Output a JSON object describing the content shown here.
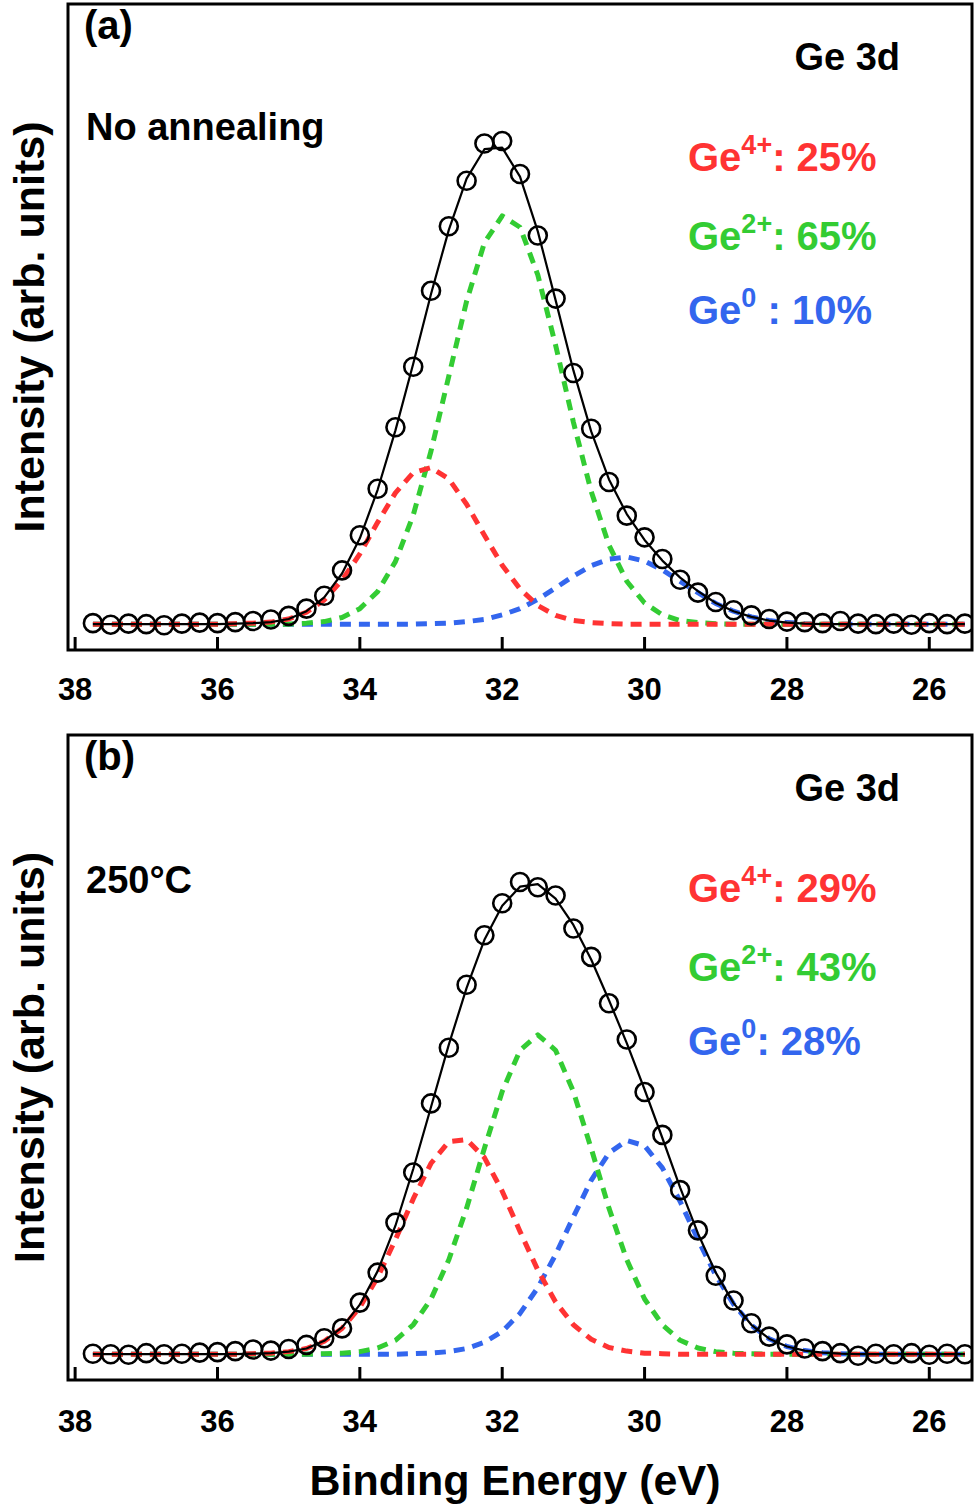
{
  "chart_data": [
    {
      "type": "line",
      "panel_label": "(a)",
      "title": "Ge 3d",
      "annotation": "No annealing",
      "y_label": "Intensity (arb. units)",
      "xlim": [
        38.1,
        25.4
      ],
      "xticks": [
        38,
        36,
        34,
        32,
        30,
        28,
        26
      ],
      "ylim": [
        -0.05,
        1.2
      ],
      "tick_labels": "x",
      "grid": false,
      "x": [
        37.75,
        37.5,
        37.25,
        37,
        36.75,
        36.5,
        36.25,
        36,
        35.75,
        35.5,
        35.25,
        35,
        34.75,
        34.5,
        34.25,
        34,
        33.75,
        33.5,
        33.25,
        33,
        32.75,
        32.5,
        32.25,
        32,
        31.75,
        31.5,
        31.25,
        31,
        30.75,
        30.5,
        30.25,
        30,
        29.75,
        29.5,
        29.25,
        29,
        28.75,
        28.5,
        28.25,
        28,
        27.75,
        27.5,
        27.25,
        27,
        26.75,
        26.5,
        26.25,
        26,
        25.75,
        25.5
      ],
      "series": [
        {
          "type": "scatter",
          "marker": "circle",
          "color": "#000000",
          "values": [
            0.002,
            -0.001,
            0.001,
            0,
            -0.002,
            0.001,
            0.003,
            0.002,
            0.004,
            0.006,
            0.009,
            0.016,
            0.03,
            0.055,
            0.104,
            0.172,
            0.262,
            0.381,
            0.498,
            0.645,
            0.77,
            0.858,
            0.93,
            0.935,
            0.871,
            0.752,
            0.63,
            0.486,
            0.378,
            0.275,
            0.21,
            0.168,
            0.126,
            0.086,
            0.061,
            0.043,
            0.027,
            0.017,
            0.01,
            0.005,
            0.004,
            0.002,
            0.006,
            0.001,
            0,
            0.001,
            -0.001,
            0.002,
            0,
            0.001
          ]
        },
        {
          "type": "line",
          "line_style": "solid",
          "color": "#000000",
          "values": [
            0,
            0,
            0,
            0,
            0,
            0,
            0,
            0,
            0.001,
            0.002,
            0.004,
            0.01,
            0.025,
            0.052,
            0.098,
            0.166,
            0.26,
            0.375,
            0.504,
            0.639,
            0.763,
            0.862,
            0.919,
            0.922,
            0.866,
            0.76,
            0.627,
            0.491,
            0.373,
            0.28,
            0.213,
            0.163,
            0.123,
            0.09,
            0.064,
            0.041,
            0.025,
            0.014,
            0.007,
            0.003,
            0.001,
            0,
            0,
            0,
            0,
            0,
            0,
            0,
            0,
            0
          ]
        },
        {
          "type": "line",
          "line_style": "dashed",
          "color": "#ff3333",
          "name": "Ge",
          "name_sup": "4+",
          "share": 25,
          "share_label": ": 25%",
          "values": [
            0,
            0,
            0,
            0,
            0,
            0,
            0,
            0,
            0.001,
            0.002,
            0.004,
            0.01,
            0.023,
            0.047,
            0.085,
            0.136,
            0.197,
            0.254,
            0.293,
            0.303,
            0.281,
            0.232,
            0.172,
            0.114,
            0.068,
            0.036,
            0.017,
            0.007,
            0.003,
            0.001,
            0,
            0,
            0,
            0,
            0,
            0,
            0,
            0,
            0,
            0,
            0,
            0,
            0,
            0,
            0,
            0,
            0,
            0,
            0,
            0
          ]
        },
        {
          "type": "line",
          "line_style": "dashed",
          "color": "#33cc33",
          "name": "Ge",
          "name_sup": "2+",
          "share": 65,
          "share_label": ": 65%",
          "values": [
            0,
            0,
            0,
            0,
            0,
            0,
            0,
            0,
            0,
            0,
            0,
            0,
            0.002,
            0.005,
            0.013,
            0.03,
            0.063,
            0.121,
            0.211,
            0.335,
            0.48,
            0.625,
            0.738,
            0.79,
            0.768,
            0.676,
            0.54,
            0.391,
            0.257,
            0.153,
            0.083,
            0.041,
            0.018,
            0.007,
            0.003,
            0.001,
            0,
            0,
            0,
            0,
            0,
            0,
            0,
            0,
            0,
            0,
            0,
            0,
            0,
            0
          ]
        },
        {
          "type": "line",
          "line_style": "dashed",
          "color": "#3366ee",
          "name": "Ge",
          "name_sup": "0",
          "share": 10,
          "share_label": " : 10%",
          "values": [
            0,
            0,
            0,
            0,
            0,
            0,
            0,
            0,
            0,
            0,
            0,
            0,
            0,
            0,
            0,
            0,
            0,
            0,
            0,
            0.001,
            0.002,
            0.005,
            0.009,
            0.018,
            0.03,
            0.048,
            0.07,
            0.093,
            0.113,
            0.126,
            0.13,
            0.122,
            0.105,
            0.083,
            0.061,
            0.04,
            0.025,
            0.014,
            0.007,
            0.003,
            0.001,
            0,
            0,
            0,
            0,
            0,
            0,
            0,
            0,
            0
          ]
        }
      ]
    },
    {
      "type": "line",
      "panel_label": "(b)",
      "title": "Ge 3d",
      "annotation": "250°C",
      "y_label": "Intensity (arb. units)",
      "x_label": "Binding Energy (eV)",
      "xlim": [
        38.1,
        25.4
      ],
      "xticks": [
        38,
        36,
        34,
        32,
        30,
        28,
        26
      ],
      "ylim": [
        -0.05,
        1.2
      ],
      "tick_labels": "x",
      "grid": false,
      "x": [
        37.75,
        37.5,
        37.25,
        37,
        36.75,
        36.5,
        36.25,
        36,
        35.75,
        35.5,
        35.25,
        35,
        34.75,
        34.5,
        34.25,
        34,
        33.75,
        33.5,
        33.25,
        33,
        32.75,
        32.5,
        32.25,
        32,
        31.75,
        31.5,
        31.25,
        31,
        30.75,
        30.5,
        30.25,
        30,
        29.75,
        29.5,
        29.25,
        29,
        28.75,
        28.5,
        28.25,
        28,
        27.75,
        27.5,
        27.25,
        27,
        26.75,
        26.5,
        26.25,
        26,
        25.75,
        25.5
      ],
      "series": [
        {
          "type": "scatter",
          "marker": "circle",
          "color": "#000000",
          "values": [
            0.001,
            0,
            -0.001,
            0.002,
            0,
            0.001,
            0.003,
            0.004,
            0.006,
            0.009,
            0.007,
            0.01,
            0.018,
            0.031,
            0.05,
            0.1,
            0.158,
            0.255,
            0.352,
            0.486,
            0.594,
            0.716,
            0.812,
            0.874,
            0.915,
            0.905,
            0.889,
            0.825,
            0.77,
            0.68,
            0.61,
            0.508,
            0.425,
            0.318,
            0.24,
            0.152,
            0.104,
            0.06,
            0.034,
            0.019,
            0.011,
            0.006,
            0.002,
            -0.003,
            0.001,
            0,
            0.002,
            -0.001,
            0.001,
            0
          ]
        },
        {
          "type": "line",
          "line_style": "solid",
          "color": "#000000",
          "values": [
            0,
            0,
            0,
            0,
            0,
            0,
            0,
            0,
            0,
            0.001,
            0.002,
            0.005,
            0.011,
            0.026,
            0.052,
            0.096,
            0.161,
            0.249,
            0.359,
            0.479,
            0.6,
            0.71,
            0.803,
            0.869,
            0.906,
            0.911,
            0.883,
            0.832,
            0.765,
            0.686,
            0.603,
            0.513,
            0.419,
            0.323,
            0.234,
            0.158,
            0.099,
            0.057,
            0.03,
            0.015,
            0.007,
            0.003,
            0.001,
            0,
            0,
            0,
            0,
            0,
            0,
            0
          ]
        },
        {
          "type": "line",
          "line_style": "dashed",
          "color": "#ff3333",
          "name": "Ge",
          "name_sup": "4+",
          "share": 29,
          "share_label": ": 29%",
          "values": [
            0,
            0,
            0,
            0,
            0,
            0,
            0,
            0,
            0,
            0.001,
            0.002,
            0.005,
            0.011,
            0.025,
            0.05,
            0.091,
            0.149,
            0.222,
            0.301,
            0.37,
            0.412,
            0.416,
            0.381,
            0.316,
            0.238,
            0.163,
            0.101,
            0.057,
            0.029,
            0.013,
            0.006,
            0.002,
            0.001,
            0,
            0,
            0,
            0,
            0,
            0,
            0,
            0,
            0,
            0,
            0,
            0,
            0,
            0,
            0,
            0,
            0
          ]
        },
        {
          "type": "line",
          "line_style": "dashed",
          "color": "#33cc33",
          "name": "Ge",
          "name_sup": "2+",
          "share": 43,
          "share_label": ": 43%",
          "values": [
            0,
            0,
            0,
            0,
            0,
            0,
            0,
            0,
            0,
            0,
            0,
            0,
            0,
            0.001,
            0.002,
            0.005,
            0.012,
            0.027,
            0.057,
            0.107,
            0.183,
            0.283,
            0.399,
            0.509,
            0.589,
            0.619,
            0.589,
            0.509,
            0.399,
            0.283,
            0.183,
            0.107,
            0.057,
            0.027,
            0.012,
            0.005,
            0.002,
            0.001,
            0,
            0,
            0,
            0,
            0,
            0,
            0,
            0,
            0,
            0,
            0,
            0
          ]
        },
        {
          "type": "line",
          "line_style": "dashed",
          "color": "#3366ee",
          "name": "Ge",
          "name_sup": "0",
          "share": 28,
          "share_label": ": 28%",
          "values": [
            0,
            0,
            0,
            0,
            0,
            0,
            0,
            0,
            0,
            0,
            0,
            0,
            0,
            0,
            0,
            0,
            0,
            0,
            0.001,
            0.002,
            0.005,
            0.011,
            0.023,
            0.044,
            0.079,
            0.129,
            0.193,
            0.266,
            0.337,
            0.39,
            0.414,
            0.404,
            0.361,
            0.296,
            0.222,
            0.153,
            0.097,
            0.056,
            0.03,
            0.015,
            0.007,
            0.003,
            0.001,
            0,
            0,
            0,
            0,
            0,
            0,
            0
          ]
        }
      ]
    }
  ]
}
